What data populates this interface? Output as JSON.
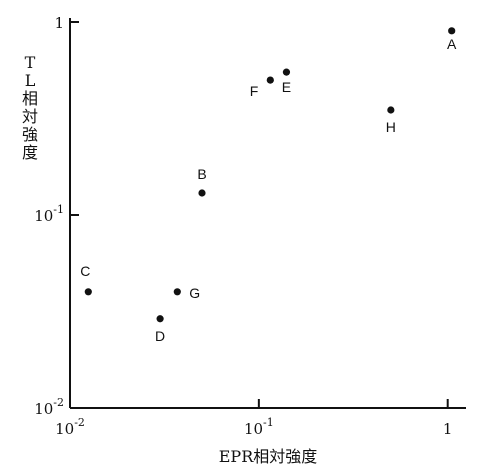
{
  "chart_data": {
    "type": "scatter",
    "xlabel": "EPR相対強度",
    "ylabel": "TL相対強度",
    "x_scale": "log",
    "y_scale": "log",
    "xlim": [
      0.01,
      1.25
    ],
    "ylim": [
      0.01,
      1.0
    ],
    "x_ticks": [
      {
        "value": 0.01,
        "base": "10",
        "exp": "-2"
      },
      {
        "value": 0.1,
        "base": "10",
        "exp": "-1"
      },
      {
        "value": 1,
        "base": "1",
        "exp": ""
      }
    ],
    "y_ticks": [
      {
        "value": 0.01,
        "base": "10",
        "exp": "-2"
      },
      {
        "value": 0.1,
        "base": "10",
        "exp": "-1"
      },
      {
        "value": 1,
        "base": "1",
        "exp": ""
      }
    ],
    "grid": false,
    "points": [
      {
        "label": "A",
        "x": 1.05,
        "y": 0.9
      },
      {
        "label": "B",
        "x": 0.05,
        "y": 0.13
      },
      {
        "label": "C",
        "x": 0.0125,
        "y": 0.04
      },
      {
        "label": "D",
        "x": 0.03,
        "y": 0.029
      },
      {
        "label": "E",
        "x": 0.14,
        "y": 0.55
      },
      {
        "label": "F",
        "x": 0.115,
        "y": 0.5
      },
      {
        "label": "G",
        "x": 0.037,
        "y": 0.04
      },
      {
        "label": "H",
        "x": 0.5,
        "y": 0.35
      }
    ]
  }
}
